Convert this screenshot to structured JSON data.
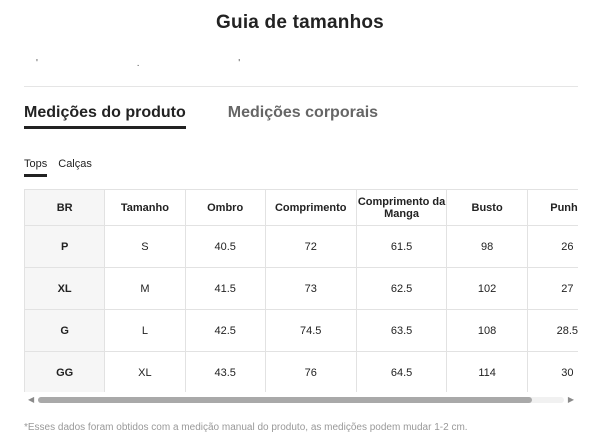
{
  "title": "Guia de tamanhos",
  "main_tabs": [
    "Medições do produto",
    "Medições corporais"
  ],
  "sub_tabs": [
    "Tops",
    "Calças"
  ],
  "table": {
    "headers": [
      "BR",
      "Tamanho",
      "Ombro",
      "Comprimento",
      "Comprimento da Manga",
      "Busto",
      "Punho"
    ],
    "rows": [
      [
        "P",
        "S",
        "40.5",
        "72",
        "61.5",
        "98",
        "26"
      ],
      [
        "XL",
        "M",
        "41.5",
        "73",
        "62.5",
        "102",
        "27"
      ],
      [
        "G",
        "L",
        "42.5",
        "74.5",
        "63.5",
        "108",
        "28.5"
      ],
      [
        "GG",
        "XL",
        "43.5",
        "76",
        "64.5",
        "114",
        "30"
      ]
    ]
  },
  "footnote": "*Esses dados foram obtidos com a medição manual do produto, as medições podem mudar 1-2 cm.",
  "icons": {
    "scroll_left": "caret-left-icon",
    "scroll_right": "caret-right-icon"
  }
}
